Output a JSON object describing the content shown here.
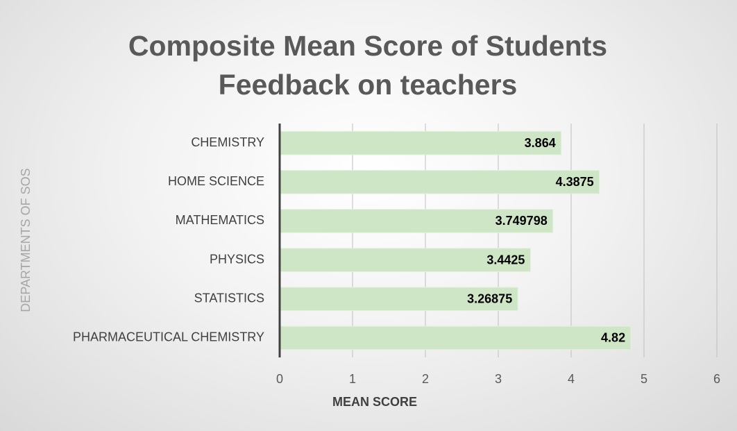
{
  "chart_data": {
    "type": "bar",
    "orientation": "horizontal",
    "title": "Composite Mean Score of Students Feedback on teachers",
    "x_label": "MEAN SCORE",
    "y_label": "DEPARTMENTS OF SOS",
    "categories": [
      "CHEMISTRY",
      "HOME SCIENCE",
      "MATHEMATICS",
      "PHYSICS",
      "STATISTICS",
      "PHARMACEUTICAL CHEMISTRY"
    ],
    "values": [
      3.864,
      4.3875,
      3.749798,
      3.4425,
      3.26875,
      4.82
    ],
    "color": "#cfe6c6",
    "xlim": [
      0,
      6
    ],
    "xticks": [
      0,
      1,
      2,
      3,
      4,
      5,
      6
    ],
    "grid": true
  }
}
